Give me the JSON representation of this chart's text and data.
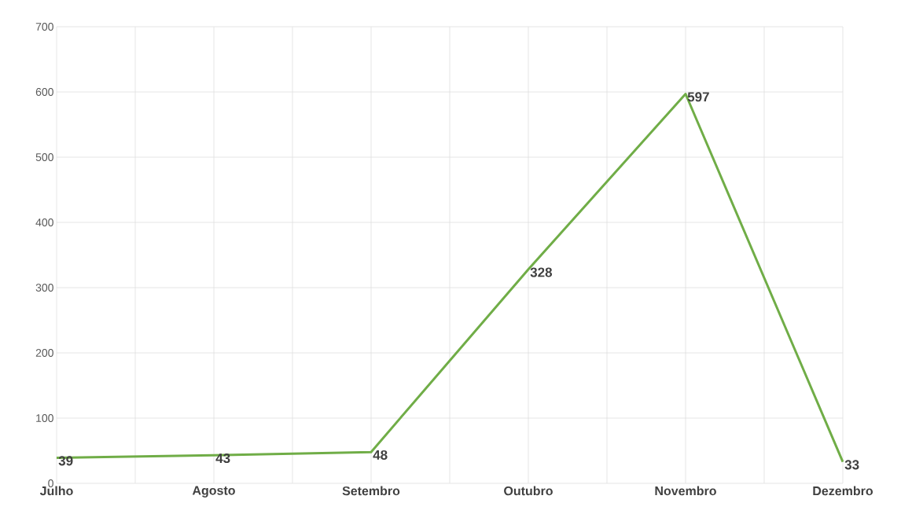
{
  "chart_data": {
    "type": "line",
    "categories": [
      "Julho",
      "Agosto",
      "Setembro",
      "Outubro",
      "Novembro",
      "Dezembro"
    ],
    "series": [
      {
        "color": "#70ad47",
        "values": [
          39,
          43,
          48,
          328,
          597,
          33
        ]
      }
    ],
    "ylim": [
      0,
      700
    ],
    "yticks": [
      0,
      100,
      200,
      300,
      400,
      500,
      600,
      700
    ],
    "grid": true,
    "data_labels": true,
    "marker": "none",
    "line_style": "solid"
  }
}
